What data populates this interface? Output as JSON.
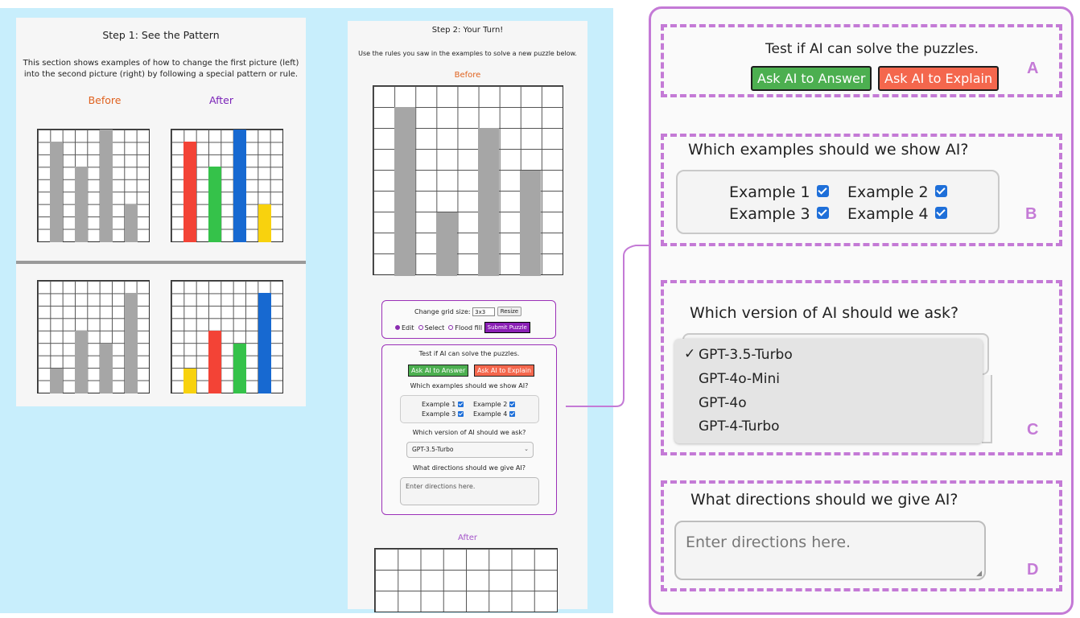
{
  "step1": {
    "title": "Step 1: See the Pattern",
    "description": "This section shows examples of how to change the first picture (left) into the second picture (right) by following a special pattern or rule.",
    "before_label": "Before",
    "after_label": "After",
    "colors": {
      "gray": "#a6a6a6",
      "red": "#f34336",
      "green": "#35c24a",
      "blue": "#1769d1",
      "yellow": "#f8d20e"
    }
  },
  "step2": {
    "title": "Step 2: Your Turn!",
    "description": "Use the rules you saw in the examples to solve a new puzzle below.",
    "before_label": "Before",
    "after_label": "After",
    "controls": {
      "grid_size_label": "Change grid size:",
      "grid_size_value": "3x3",
      "resize_label": "Resize",
      "mode_edit": "Edit",
      "mode_select": "Select",
      "mode_flood": "Flood fill",
      "submit_label": "Submit Puzzle"
    },
    "ai_panel": {
      "test_text": "Test if AI can solve the puzzles.",
      "ask_answer": "Ask AI to Answer",
      "ask_explain": "Ask AI to Explain",
      "examples_q": "Which examples should we show AI?",
      "examples": [
        "Example 1",
        "Example 2",
        "Example 3",
        "Example 4"
      ],
      "version_q": "Which version of AI should we ask?",
      "version_selected": "GPT-3.5-Turbo",
      "directions_q": "What directions should we give AI?",
      "directions_placeholder": "Enter directions here."
    }
  },
  "zoom": {
    "accent": "#c47ad6",
    "section_a": {
      "letter": "A",
      "test_text": "Test if AI can solve the puzzles.",
      "ask_answer": "Ask AI to Answer",
      "ask_explain": "Ask AI to Explain"
    },
    "section_b": {
      "letter": "B",
      "question": "Which examples should we show AI?",
      "examples": [
        "Example 1",
        "Example 2",
        "Example 3",
        "Example 4"
      ]
    },
    "section_c": {
      "letter": "C",
      "question": "Which version of AI should we ask?",
      "checkmark": "✓",
      "options": [
        "GPT-3.5-Turbo",
        "GPT-4o-Mini",
        "GPT-4o",
        "GPT-4-Turbo"
      ]
    },
    "section_d": {
      "letter": "D",
      "question": "What directions should we give AI?",
      "placeholder": "Enter directions here."
    }
  }
}
